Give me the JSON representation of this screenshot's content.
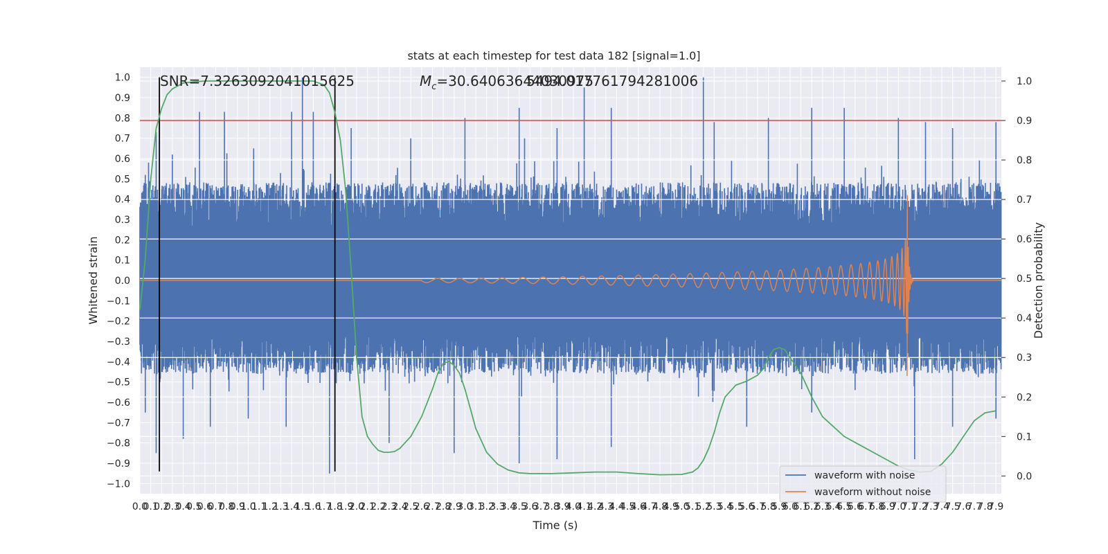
{
  "chart_data": {
    "type": "line",
    "title": "stats at each timestep for test data 182 [signal=1.0]",
    "xlabel": "Time (s)",
    "ylabel": "Whitened strain",
    "ylabel_right": "Detection probability",
    "xlim": [
      0.0,
      7.95
    ],
    "ylim": [
      -1.05,
      1.05
    ],
    "ylim_right": [
      -0.045,
      1.035
    ],
    "x_ticks": [
      0.0,
      0.1,
      0.2,
      0.3,
      0.4,
      0.5,
      0.6,
      0.7,
      0.8,
      0.9,
      1.0,
      1.1,
      1.2,
      1.3,
      1.4,
      1.5,
      1.6,
      1.7,
      1.8,
      1.9,
      2.0,
      2.1,
      2.2,
      2.3,
      2.4,
      2.5,
      2.6,
      2.7,
      2.8,
      2.9,
      3.0,
      3.1,
      3.2,
      3.3,
      3.4,
      3.5,
      3.6,
      3.7,
      3.8,
      3.9,
      4.0,
      4.1,
      4.2,
      4.3,
      4.4,
      4.5,
      4.6,
      4.7,
      4.8,
      4.9,
      5.0,
      5.1,
      5.2,
      5.3,
      5.4,
      5.5,
      5.6,
      5.7,
      5.8,
      5.9,
      6.0,
      6.1,
      6.2,
      6.3,
      6.4,
      6.5,
      6.6,
      6.7,
      6.8,
      6.9,
      7.0,
      7.1,
      7.2,
      7.3,
      7.4,
      7.5,
      7.6,
      7.7,
      7.8,
      7.9
    ],
    "y_ticks": [
      -1.0,
      -0.9,
      -0.8,
      -0.7,
      -0.6,
      -0.5,
      -0.4,
      -0.3,
      -0.2,
      -0.1,
      0.0,
      0.1,
      0.2,
      0.3,
      0.4,
      0.5,
      0.6,
      0.7,
      0.8,
      0.9,
      1.0
    ],
    "y_ticks_right": [
      0.0,
      0.1,
      0.2,
      0.3,
      0.4,
      0.5,
      0.6,
      0.7,
      0.8,
      0.9,
      1.0
    ],
    "grid": true,
    "legend_position": "bottom-right",
    "annotations": {
      "snr": "SNR=7.3263092041015625",
      "mc_symbol": "M",
      "mc_sub": "c",
      "mc_value": "=30.64063644030975",
      "mc_overlap": "5494.017761794281006"
    },
    "series": [
      {
        "name": "waveform with noise",
        "color": "#4c72b0",
        "noise_envelope": {
          "upper_typical": 0.42,
          "lower_typical": -0.4,
          "peaks_upper": [
            [
              0.05,
              0.52
            ],
            [
              0.08,
              0.58
            ],
            [
              0.15,
              0.73
            ],
            [
              0.3,
              0.62
            ],
            [
              0.55,
              0.83
            ],
            [
              0.78,
              0.83
            ],
            [
              1.05,
              0.65
            ],
            [
              1.4,
              0.83
            ],
            [
              1.5,
              1.0
            ],
            [
              1.6,
              0.83
            ],
            [
              1.95,
              0.75
            ],
            [
              2.5,
              0.7
            ],
            [
              3.0,
              0.8
            ],
            [
              3.5,
              0.85
            ],
            [
              3.55,
              0.7
            ],
            [
              3.85,
              0.75
            ],
            [
              4.1,
              0.95
            ],
            [
              4.35,
              0.85
            ],
            [
              5.2,
              1.0
            ],
            [
              5.3,
              0.78
            ],
            [
              5.8,
              0.8
            ],
            [
              6.2,
              0.85
            ],
            [
              6.5,
              0.85
            ],
            [
              7.0,
              0.8
            ],
            [
              7.25,
              0.78
            ],
            [
              7.5,
              0.75
            ],
            [
              7.9,
              0.78
            ]
          ],
          "peaks_lower": [
            [
              0.05,
              -0.65
            ],
            [
              0.15,
              -0.85
            ],
            [
              0.4,
              -0.78
            ],
            [
              0.65,
              -0.72
            ],
            [
              1.0,
              -0.68
            ],
            [
              1.35,
              -0.72
            ],
            [
              1.75,
              -0.95
            ],
            [
              2.3,
              -0.8
            ],
            [
              2.9,
              -0.85
            ],
            [
              3.5,
              -0.9
            ],
            [
              3.85,
              -0.88
            ],
            [
              4.35,
              -0.82
            ],
            [
              5.6,
              -0.72
            ],
            [
              6.2,
              -0.65
            ],
            [
              7.15,
              -0.88
            ],
            [
              7.5,
              -0.72
            ],
            [
              7.9,
              -0.68
            ]
          ]
        }
      },
      {
        "name": "waveform without noise",
        "color": "#dd8452",
        "chirp": {
          "start": 2.6,
          "merger": 7.08,
          "ringdown_end": 7.14,
          "peak_amplitude": 0.42,
          "trough_amplitude": -0.47
        }
      },
      {
        "color": "#55a868",
        "axis": "right",
        "x": [
          0.0,
          0.05,
          0.1,
          0.15,
          0.2,
          0.25,
          0.3,
          0.4,
          0.5,
          0.6,
          0.8,
          1.0,
          1.2,
          1.4,
          1.6,
          1.7,
          1.75,
          1.8,
          1.85,
          1.9,
          1.95,
          2.0,
          2.05,
          2.1,
          2.15,
          2.2,
          2.25,
          2.3,
          2.35,
          2.4,
          2.5,
          2.6,
          2.7,
          2.75,
          2.8,
          2.85,
          2.9,
          2.95,
          3.0,
          3.05,
          3.1,
          3.2,
          3.3,
          3.4,
          3.5,
          3.6,
          3.8,
          4.0,
          4.2,
          4.4,
          4.6,
          4.8,
          5.0,
          5.1,
          5.15,
          5.2,
          5.25,
          5.3,
          5.35,
          5.4,
          5.5,
          5.6,
          5.7,
          5.75,
          5.8,
          5.85,
          5.9,
          5.95,
          6.0,
          6.1,
          6.2,
          6.3,
          6.5,
          6.7,
          6.8,
          6.9,
          7.0,
          7.1,
          7.2,
          7.3,
          7.4,
          7.5,
          7.6,
          7.7,
          7.8,
          7.9
        ],
        "y": [
          0.42,
          0.55,
          0.75,
          0.88,
          0.93,
          0.965,
          0.98,
          0.995,
          0.998,
          1.0,
          1.0,
          1.0,
          1.0,
          1.0,
          1.0,
          0.99,
          0.97,
          0.92,
          0.85,
          0.72,
          0.52,
          0.3,
          0.15,
          0.1,
          0.08,
          0.065,
          0.06,
          0.06,
          0.062,
          0.07,
          0.1,
          0.15,
          0.22,
          0.26,
          0.285,
          0.29,
          0.28,
          0.26,
          0.22,
          0.17,
          0.12,
          0.06,
          0.03,
          0.015,
          0.008,
          0.006,
          0.006,
          0.008,
          0.01,
          0.01,
          0.006,
          0.003,
          0.004,
          0.01,
          0.02,
          0.04,
          0.07,
          0.11,
          0.16,
          0.2,
          0.23,
          0.24,
          0.255,
          0.27,
          0.3,
          0.32,
          0.325,
          0.32,
          0.3,
          0.26,
          0.2,
          0.15,
          0.1,
          0.07,
          0.055,
          0.04,
          0.025,
          0.015,
          0.01,
          0.012,
          0.03,
          0.06,
          0.1,
          0.14,
          0.16,
          0.165
        ]
      },
      {
        "color": "#c44e52",
        "type": "hline",
        "axis": "right",
        "y": 0.9
      }
    ],
    "vlines": {
      "x": [
        0.18,
        1.8
      ],
      "color": "#000000",
      "ymin": -0.94,
      "ymax": 1.0
    }
  }
}
